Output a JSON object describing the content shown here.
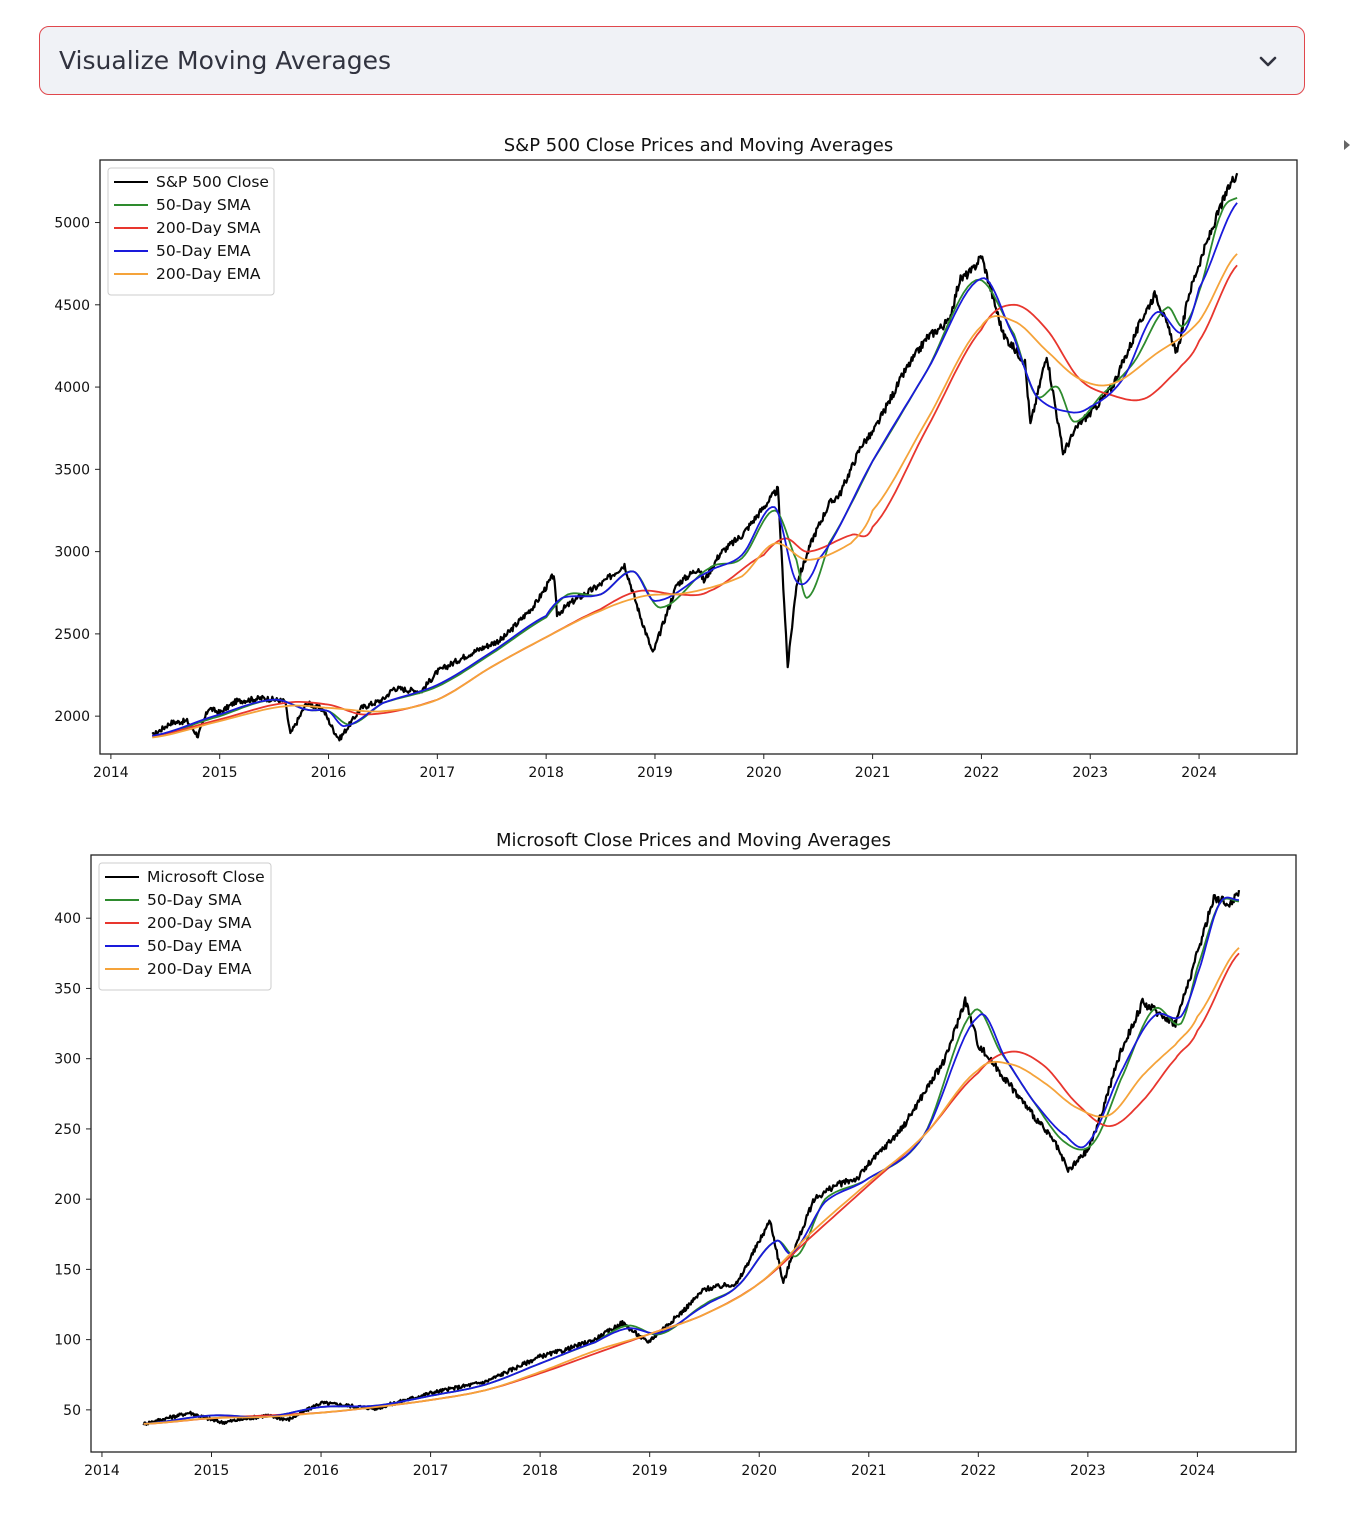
{
  "expander": {
    "label": "Visualize Moving Averages",
    "icon": "chevron-down-icon",
    "border_color": "#e0474c",
    "background": "#f0f2f6"
  },
  "colors": {
    "close": "#000000",
    "sma50": "#2e8b2e",
    "sma200": "#e8362e",
    "ema50": "#1a1adb",
    "ema200": "#f5a33a"
  },
  "chart_data": [
    {
      "type": "line",
      "title": "S&P 500 Close Prices and Moving Averages",
      "xlabel": "",
      "ylabel": "",
      "xlim": [
        2013.9,
        2024.9
      ],
      "ylim": [
        1770,
        5380
      ],
      "x_ticks": [
        2014,
        2015,
        2016,
        2017,
        2018,
        2019,
        2020,
        2021,
        2022,
        2023,
        2024
      ],
      "x_tick_labels": [
        "2014",
        "2015",
        "2016",
        "2017",
        "2018",
        "2019",
        "2020",
        "2021",
        "2022",
        "2023",
        "2024"
      ],
      "y_ticks": [
        2000,
        2500,
        3000,
        3500,
        4000,
        4500,
        5000
      ],
      "y_tick_labels": [
        "2000",
        "2500",
        "3000",
        "3500",
        "4000",
        "4500",
        "5000"
      ],
      "grid": false,
      "legend": "top-left",
      "series": [
        {
          "name": "S&P 500 Close",
          "key": "close",
          "x": [
            2014.38,
            2014.55,
            2014.7,
            2014.8,
            2014.9,
            2015.0,
            2015.15,
            2015.4,
            2015.6,
            2015.65,
            2015.8,
            2015.95,
            2016.05,
            2016.1,
            2016.3,
            2016.5,
            2016.6,
            2016.85,
            2017.0,
            2017.3,
            2017.6,
            2017.9,
            2018.07,
            2018.1,
            2018.25,
            2018.5,
            2018.72,
            2018.85,
            2018.98,
            2019.2,
            2019.4,
            2019.45,
            2019.6,
            2019.8,
            2020.0,
            2020.13,
            2020.22,
            2020.3,
            2020.45,
            2020.6,
            2020.7,
            2020.9,
            2021.0,
            2021.3,
            2021.5,
            2021.7,
            2021.8,
            2021.92,
            2022.0,
            2022.2,
            2022.4,
            2022.45,
            2022.6,
            2022.75,
            2022.9,
            2023.0,
            2023.2,
            2023.5,
            2023.6,
            2023.8,
            2023.9,
            2024.0,
            2024.2,
            2024.3,
            2024.35
          ],
          "values": [
            1880,
            1960,
            1970,
            1880,
            2050,
            2020,
            2090,
            2110,
            2090,
            1890,
            2080,
            2040,
            1910,
            1860,
            2050,
            2100,
            2170,
            2150,
            2270,
            2380,
            2470,
            2680,
            2860,
            2620,
            2700,
            2800,
            2920,
            2640,
            2380,
            2800,
            2900,
            2820,
            2990,
            3100,
            3270,
            3380,
            2300,
            2800,
            3080,
            3290,
            3350,
            3650,
            3720,
            4100,
            4300,
            4400,
            4650,
            4710,
            4800,
            4320,
            4150,
            3770,
            4200,
            3600,
            3780,
            3840,
            4000,
            4450,
            4570,
            4200,
            4550,
            4750,
            5100,
            5250,
            5300
          ]
        },
        {
          "name": "50-Day SMA",
          "key": "sma50",
          "x": [
            2014.38,
            2015.0,
            2015.5,
            2015.8,
            2016.0,
            2016.2,
            2016.5,
            2017.0,
            2017.5,
            2018.0,
            2018.2,
            2018.5,
            2018.8,
            2019.05,
            2019.5,
            2019.8,
            2020.1,
            2020.3,
            2020.4,
            2020.6,
            2021.0,
            2021.5,
            2021.95,
            2022.3,
            2022.5,
            2022.7,
            2022.85,
            2023.1,
            2023.4,
            2023.7,
            2023.85,
            2024.0,
            2024.2,
            2024.35
          ],
          "values": [
            1880,
            2000,
            2100,
            2040,
            2030,
            1950,
            2080,
            2180,
            2380,
            2600,
            2740,
            2740,
            2880,
            2660,
            2900,
            2960,
            3250,
            2950,
            2720,
            3050,
            3550,
            4100,
            4650,
            4320,
            3950,
            4000,
            3790,
            3950,
            4150,
            4480,
            4370,
            4580,
            5050,
            5150
          ]
        },
        {
          "name": "200-Day SMA",
          "key": "sma200",
          "x": [
            2014.38,
            2015.0,
            2015.6,
            2016.0,
            2016.35,
            2017.0,
            2017.5,
            2018.0,
            2018.5,
            2018.85,
            2019.2,
            2019.5,
            2020.0,
            2020.2,
            2020.4,
            2020.8,
            2021.0,
            2021.5,
            2022.0,
            2022.3,
            2022.6,
            2022.9,
            2023.2,
            2023.5,
            2023.8,
            2024.0,
            2024.35
          ],
          "values": [
            1880,
            1980,
            2080,
            2070,
            2010,
            2100,
            2300,
            2480,
            2650,
            2760,
            2740,
            2760,
            2980,
            3080,
            3000,
            3100,
            3150,
            3750,
            4350,
            4500,
            4350,
            4050,
            3950,
            3930,
            4100,
            4280,
            4740
          ]
        },
        {
          "name": "50-Day EMA",
          "key": "ema50",
          "x": [
            2014.38,
            2015.0,
            2015.5,
            2015.8,
            2016.0,
            2016.15,
            2016.5,
            2017.0,
            2017.5,
            2018.0,
            2018.15,
            2018.5,
            2018.8,
            2019.0,
            2019.5,
            2019.8,
            2020.1,
            2020.3,
            2020.5,
            2021.0,
            2021.5,
            2022.0,
            2022.3,
            2022.5,
            2022.8,
            2023.0,
            2023.3,
            2023.6,
            2023.85,
            2024.0,
            2024.35
          ],
          "values": [
            1880,
            2010,
            2100,
            2040,
            2030,
            1940,
            2080,
            2190,
            2390,
            2610,
            2720,
            2740,
            2880,
            2700,
            2880,
            2980,
            3270,
            2820,
            2950,
            3550,
            4100,
            4660,
            4300,
            3950,
            3850,
            3880,
            4050,
            4450,
            4330,
            4600,
            5120
          ]
        },
        {
          "name": "200-Day EMA",
          "key": "ema200",
          "x": [
            2014.38,
            2015.0,
            2015.6,
            2016.0,
            2016.5,
            2017.0,
            2017.5,
            2018.0,
            2018.5,
            2018.9,
            2019.3,
            2019.8,
            2020.1,
            2020.4,
            2020.8,
            2021.0,
            2021.5,
            2022.0,
            2022.3,
            2022.6,
            2022.9,
            2023.2,
            2023.6,
            2024.0,
            2024.35
          ],
          "values": [
            1870,
            1970,
            2060,
            2050,
            2030,
            2100,
            2300,
            2480,
            2640,
            2730,
            2750,
            2850,
            3050,
            2950,
            3050,
            3250,
            3800,
            4370,
            4400,
            4220,
            4050,
            4020,
            4200,
            4400,
            4810
          ]
        }
      ]
    },
    {
      "type": "line",
      "title": "Microsoft Close Prices and Moving Averages",
      "xlabel": "",
      "ylabel": "",
      "xlim": [
        2013.9,
        2024.9
      ],
      "ylim": [
        20,
        445
      ],
      "x_ticks": [
        2014,
        2015,
        2016,
        2017,
        2018,
        2019,
        2020,
        2021,
        2022,
        2023,
        2024
      ],
      "x_tick_labels": [
        "2014",
        "2015",
        "2016",
        "2017",
        "2018",
        "2019",
        "2020",
        "2021",
        "2022",
        "2023",
        "2024"
      ],
      "y_ticks": [
        50,
        100,
        150,
        200,
        250,
        300,
        350,
        400
      ],
      "y_tick_labels": [
        "50",
        "100",
        "150",
        "200",
        "250",
        "300",
        "350",
        "400"
      ],
      "grid": false,
      "legend": "top-left",
      "series": [
        {
          "name": "Microsoft Close",
          "key": "close",
          "x": [
            2014.38,
            2014.8,
            2015.0,
            2015.1,
            2015.5,
            2015.7,
            2016.0,
            2016.5,
            2017.0,
            2017.5,
            2018.0,
            2018.2,
            2018.5,
            2018.75,
            2018.98,
            2019.3,
            2019.5,
            2019.8,
            2020.1,
            2020.22,
            2020.3,
            2020.5,
            2020.7,
            2020.9,
            2021.0,
            2021.3,
            2021.5,
            2021.7,
            2021.88,
            2022.0,
            2022.3,
            2022.5,
            2022.7,
            2022.82,
            2023.0,
            2023.1,
            2023.3,
            2023.5,
            2023.8,
            2024.0,
            2024.15,
            2024.3,
            2024.38
          ],
          "values": [
            40,
            48,
            43,
            41,
            46,
            43,
            55,
            51,
            62,
            70,
            88,
            92,
            100,
            112,
            98,
            120,
            136,
            140,
            185,
            140,
            160,
            200,
            210,
            215,
            225,
            250,
            275,
            300,
            342,
            310,
            280,
            260,
            240,
            220,
            235,
            255,
            305,
            340,
            325,
            375,
            415,
            410,
            420
          ]
        },
        {
          "name": "50-Day SMA",
          "key": "sma50",
          "x": [
            2014.38,
            2015.0,
            2015.5,
            2016.0,
            2016.5,
            2017.0,
            2017.5,
            2018.0,
            2018.5,
            2018.8,
            2019.1,
            2019.5,
            2019.8,
            2020.15,
            2020.35,
            2020.6,
            2021.0,
            2021.5,
            2021.95,
            2022.2,
            2022.5,
            2022.8,
            2023.05,
            2023.3,
            2023.6,
            2023.85,
            2024.0,
            2024.2,
            2024.38
          ],
          "values": [
            40,
            46,
            45,
            52,
            53,
            60,
            68,
            83,
            98,
            110,
            104,
            125,
            138,
            170,
            160,
            200,
            215,
            245,
            333,
            305,
            270,
            240,
            240,
            285,
            335,
            325,
            365,
            410,
            412
          ]
        },
        {
          "name": "200-Day SMA",
          "key": "sma200",
          "x": [
            2014.38,
            2015.0,
            2015.5,
            2016.0,
            2016.5,
            2017.0,
            2017.5,
            2018.0,
            2018.5,
            2019.0,
            2019.5,
            2020.0,
            2020.5,
            2021.0,
            2021.5,
            2022.0,
            2022.3,
            2022.6,
            2022.9,
            2023.2,
            2023.5,
            2023.8,
            2024.0,
            2024.38
          ],
          "values": [
            40,
            44,
            46,
            48,
            52,
            57,
            64,
            76,
            90,
            104,
            118,
            140,
            175,
            210,
            245,
            290,
            305,
            295,
            268,
            252,
            270,
            300,
            320,
            375
          ]
        },
        {
          "name": "50-Day EMA",
          "key": "ema50",
          "x": [
            2014.38,
            2015.0,
            2015.5,
            2016.0,
            2016.5,
            2017.0,
            2017.5,
            2018.0,
            2018.5,
            2018.8,
            2019.1,
            2019.5,
            2019.8,
            2020.15,
            2020.3,
            2020.6,
            2021.0,
            2021.5,
            2022.0,
            2022.25,
            2022.5,
            2022.8,
            2023.0,
            2023.3,
            2023.6,
            2023.85,
            2024.0,
            2024.2,
            2024.38
          ],
          "values": [
            40,
            46,
            45,
            52,
            53,
            60,
            68,
            83,
            98,
            108,
            105,
            124,
            138,
            170,
            162,
            198,
            215,
            245,
            330,
            300,
            270,
            245,
            240,
            290,
            330,
            330,
            360,
            410,
            413
          ]
        },
        {
          "name": "200-Day EMA",
          "key": "ema200",
          "x": [
            2014.38,
            2015.0,
            2015.5,
            2016.0,
            2016.5,
            2017.0,
            2017.5,
            2018.0,
            2018.5,
            2019.0,
            2019.5,
            2020.0,
            2020.5,
            2021.0,
            2021.5,
            2022.0,
            2022.3,
            2022.6,
            2022.9,
            2023.2,
            2023.5,
            2023.8,
            2024.0,
            2024.38
          ],
          "values": [
            40,
            44,
            45,
            48,
            52,
            57,
            64,
            77,
            92,
            104,
            118,
            140,
            178,
            212,
            245,
            292,
            296,
            283,
            265,
            260,
            288,
            310,
            330,
            379
          ]
        }
      ]
    }
  ]
}
